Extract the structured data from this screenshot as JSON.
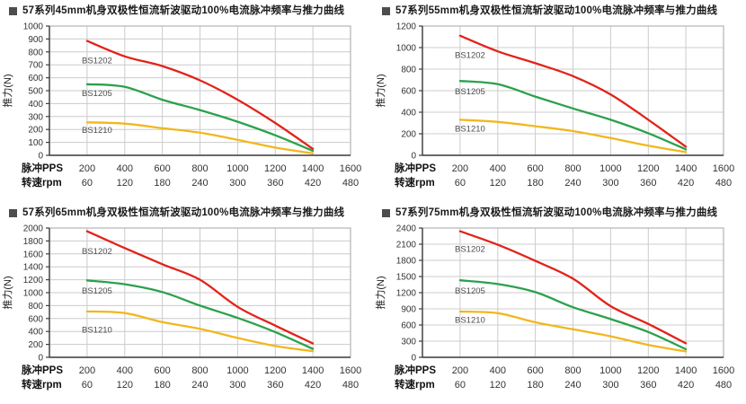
{
  "page": {
    "background": "#ffffff"
  },
  "colors": {
    "red": "#e2231a",
    "green": "#2ba14c",
    "yellow": "#f2b71e",
    "grid": "#cccccc",
    "plot_border": "#b3b3b3",
    "axis": "#3d3d3d",
    "title_text": "#1a1a1a",
    "tick_text": "#333333",
    "series_label_text": "#4d4d4d"
  },
  "axis_rows": {
    "pps_label": "脉冲PPS",
    "rpm_label": "转速rpm"
  },
  "y_axis_title": "推力(N)",
  "chart_data": [
    {
      "type": "line",
      "id": "45mm",
      "title": "57系列45mm机身双极性恒流斩波驱动100%电流脉冲频率与推力曲线",
      "ylabel": "推力(N)",
      "xlabel_rows": [
        "脉冲PPS",
        "转速rpm"
      ],
      "x_max": 1600,
      "y_max": 1000,
      "y_step": 100,
      "pps_ticks": [
        200,
        400,
        600,
        800,
        1000,
        1200,
        1400,
        1600
      ],
      "rpm_ticks": [
        60,
        120,
        180,
        240,
        300,
        360,
        420,
        480
      ],
      "x": [
        200,
        400,
        600,
        800,
        1000,
        1200,
        1400
      ],
      "series": [
        {
          "name": "BS1202",
          "color_key": "red",
          "values": [
            885,
            765,
            690,
            580,
            430,
            250,
            50
          ],
          "label_pos": [
            172,
            735
          ]
        },
        {
          "name": "BS1205",
          "color_key": "green",
          "values": [
            550,
            530,
            430,
            350,
            260,
            155,
            35
          ],
          "label_pos": [
            172,
            480
          ]
        },
        {
          "name": "BS1210",
          "color_key": "yellow",
          "values": [
            255,
            245,
            210,
            175,
            120,
            60,
            15
          ],
          "label_pos": [
            172,
            195
          ]
        }
      ]
    },
    {
      "type": "line",
      "id": "55mm",
      "title": "57系列55mm机身双极性恒流斩波驱动100%电流脉冲频率与推力曲线",
      "ylabel": "推力(N)",
      "xlabel_rows": [
        "脉冲PPS",
        "转速rpm"
      ],
      "x_max": 1600,
      "y_max": 1200,
      "y_step": 200,
      "pps_ticks": [
        200,
        400,
        600,
        800,
        1000,
        1200,
        1400,
        1600
      ],
      "rpm_ticks": [
        60,
        120,
        180,
        240,
        300,
        360,
        420,
        480
      ],
      "x": [
        200,
        400,
        600,
        800,
        1000,
        1200,
        1400
      ],
      "series": [
        {
          "name": "BS1202",
          "color_key": "red",
          "values": [
            1110,
            965,
            855,
            735,
            565,
            330,
            80
          ],
          "label_pos": [
            172,
            930
          ]
        },
        {
          "name": "BS1205",
          "color_key": "green",
          "values": [
            690,
            660,
            545,
            435,
            330,
            205,
            55
          ],
          "label_pos": [
            172,
            595
          ]
        },
        {
          "name": "BS1210",
          "color_key": "yellow",
          "values": [
            330,
            310,
            270,
            225,
            160,
            90,
            30
          ],
          "label_pos": [
            172,
            250
          ]
        }
      ]
    },
    {
      "type": "line",
      "id": "65mm",
      "title": "57系列65mm机身双极性恒流斩波驱动100%电流脉冲频率与推力曲线",
      "ylabel": "推力(N)",
      "xlabel_rows": [
        "脉冲PPS",
        "转速rpm"
      ],
      "x_max": 1600,
      "y_max": 2000,
      "y_step": 200,
      "pps_ticks": [
        200,
        400,
        600,
        800,
        1000,
        1200,
        1400,
        1600
      ],
      "rpm_ticks": [
        60,
        120,
        180,
        240,
        300,
        360,
        420,
        480
      ],
      "x": [
        200,
        400,
        600,
        800,
        1000,
        1200,
        1400
      ],
      "series": [
        {
          "name": "BS1202",
          "color_key": "red",
          "values": [
            1950,
            1690,
            1440,
            1200,
            780,
            490,
            215
          ],
          "label_pos": [
            172,
            1640
          ]
        },
        {
          "name": "BS1205",
          "color_key": "green",
          "values": [
            1190,
            1130,
            1010,
            800,
            610,
            390,
            130
          ],
          "label_pos": [
            172,
            1030
          ]
        },
        {
          "name": "BS1210",
          "color_key": "yellow",
          "values": [
            710,
            685,
            545,
            440,
            300,
            175,
            95
          ],
          "label_pos": [
            172,
            425
          ]
        }
      ]
    },
    {
      "type": "line",
      "id": "75mm",
      "title": "57系列75mm机身双极性恒流斩波驱动100%电流脉冲频率与推力曲线",
      "ylabel": "推力(N)",
      "xlabel_rows": [
        "脉冲PPS",
        "转速rpm"
      ],
      "x_max": 1600,
      "y_max": 2400,
      "y_step": 300,
      "pps_ticks": [
        200,
        400,
        600,
        800,
        1000,
        1200,
        1400,
        1600
      ],
      "rpm_ticks": [
        60,
        120,
        180,
        240,
        300,
        360,
        420,
        480
      ],
      "x": [
        200,
        400,
        600,
        800,
        1000,
        1200,
        1400
      ],
      "series": [
        {
          "name": "BS1202",
          "color_key": "red",
          "values": [
            2340,
            2090,
            1790,
            1460,
            950,
            620,
            260
          ],
          "label_pos": [
            172,
            2010
          ]
        },
        {
          "name": "BS1205",
          "color_key": "green",
          "values": [
            1430,
            1360,
            1210,
            930,
            710,
            470,
            150
          ],
          "label_pos": [
            172,
            1240
          ]
        },
        {
          "name": "BS1210",
          "color_key": "yellow",
          "values": [
            850,
            820,
            650,
            520,
            390,
            230,
            110
          ],
          "label_pos": [
            172,
            700
          ]
        }
      ]
    }
  ]
}
